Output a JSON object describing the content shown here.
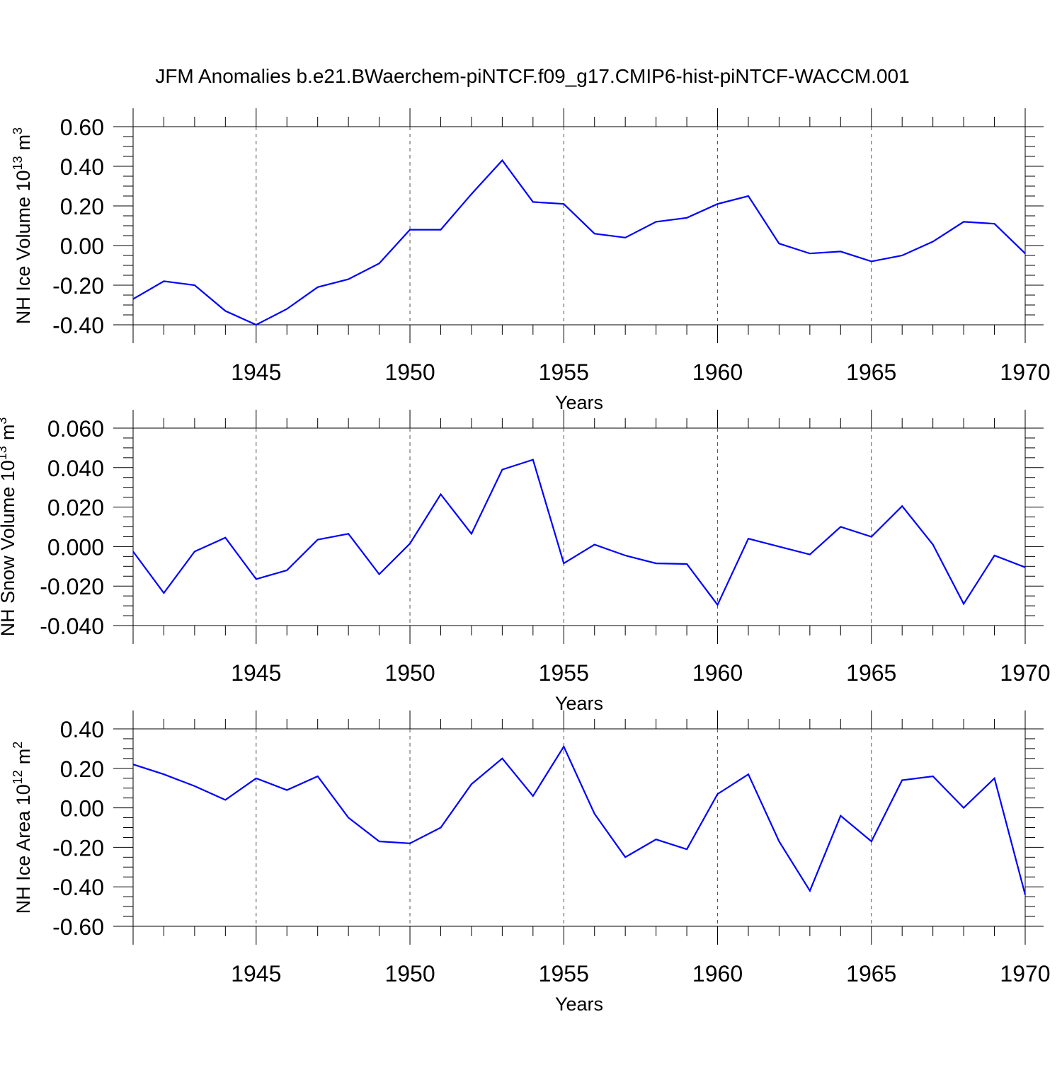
{
  "title": "JFM Anomalies b.e21.BWaerchem-piNTCF.f09_g17.CMIP6-hist-piNTCF-WACCM.001",
  "colors": {
    "series": "#0000ff",
    "axis": "#000000",
    "grid": "#555555"
  },
  "chart_data": [
    {
      "type": "line",
      "name": "ice-volume",
      "ylabel": "NH Ice Volume 10",
      "ylabel_exp": "13",
      "ylabel_unit": "m",
      "ylabel_unit_exp": "3",
      "xlabel": "Years",
      "xlim": [
        1941,
        1970
      ],
      "ylim": [
        -0.4,
        0.6
      ],
      "yticks": [
        "0.60",
        "0.40",
        "0.20",
        "0.00",
        "-0.20",
        "-0.40"
      ],
      "ytick_values": [
        0.6,
        0.4,
        0.2,
        0.0,
        -0.2,
        -0.4
      ],
      "ytick_minor_step": 0.05,
      "xticks": [
        "1945",
        "1950",
        "1955",
        "1960",
        "1965",
        "1970"
      ],
      "xtick_values": [
        1945,
        1950,
        1955,
        1960,
        1965,
        1970
      ],
      "grid_x": [
        1945,
        1950,
        1955,
        1960,
        1965
      ],
      "x": [
        1941,
        1942,
        1943,
        1944,
        1945,
        1946,
        1947,
        1948,
        1949,
        1950,
        1951,
        1952,
        1953,
        1954,
        1955,
        1956,
        1957,
        1958,
        1959,
        1960,
        1961,
        1962,
        1963,
        1964,
        1965,
        1966,
        1967,
        1968,
        1969,
        1970
      ],
      "y": [
        -0.27,
        -0.18,
        -0.2,
        -0.33,
        -0.4,
        -0.32,
        -0.21,
        -0.17,
        -0.09,
        0.08,
        0.08,
        0.26,
        0.43,
        0.22,
        0.21,
        0.06,
        0.04,
        0.12,
        0.14,
        0.21,
        0.25,
        0.01,
        -0.04,
        -0.03,
        -0.08,
        -0.05,
        0.02,
        0.12,
        0.11,
        -0.04
      ]
    },
    {
      "type": "line",
      "name": "snow-volume",
      "ylabel": "NH Snow Volume 10",
      "ylabel_exp": "13",
      "ylabel_unit": "m",
      "ylabel_unit_exp": "3",
      "xlabel": "Years",
      "xlim": [
        1941,
        1970
      ],
      "ylim": [
        -0.04,
        0.06
      ],
      "yticks": [
        "0.060",
        "0.040",
        "0.020",
        "0.000",
        "-0.020",
        "-0.040"
      ],
      "ytick_values": [
        0.06,
        0.04,
        0.02,
        0.0,
        -0.02,
        -0.04
      ],
      "ytick_minor_step": 0.005,
      "xticks": [
        "1945",
        "1950",
        "1955",
        "1960",
        "1965",
        "1970"
      ],
      "xtick_values": [
        1945,
        1950,
        1955,
        1960,
        1965,
        1970
      ],
      "grid_x": [
        1945,
        1950,
        1955,
        1960,
        1965
      ],
      "x": [
        1941,
        1942,
        1943,
        1944,
        1945,
        1946,
        1947,
        1948,
        1949,
        1950,
        1951,
        1952,
        1953,
        1954,
        1955,
        1956,
        1957,
        1958,
        1959,
        1960,
        1961,
        1962,
        1963,
        1964,
        1965,
        1966,
        1967,
        1968,
        1969,
        1970
      ],
      "y": [
        -0.0025,
        -0.0235,
        -0.0025,
        0.0045,
        -0.0165,
        -0.012,
        0.0035,
        0.0065,
        -0.014,
        0.0015,
        0.0265,
        0.0065,
        0.039,
        0.044,
        -0.0085,
        0.001,
        -0.0045,
        -0.0085,
        -0.0088,
        -0.0295,
        0.004,
        0.0,
        -0.004,
        0.01,
        0.005,
        0.0205,
        0.001,
        -0.029,
        -0.0045,
        -0.0105
      ]
    },
    {
      "type": "line",
      "name": "ice-area",
      "ylabel": "NH Ice Area 10",
      "ylabel_exp": "12",
      "ylabel_unit": "m",
      "ylabel_unit_exp": "2",
      "xlabel": "Years",
      "xlim": [
        1941,
        1970
      ],
      "ylim": [
        -0.6,
        0.4
      ],
      "yticks": [
        "0.40",
        "0.20",
        "0.00",
        "-0.20",
        "-0.40",
        "-0.60"
      ],
      "ytick_values": [
        0.4,
        0.2,
        0.0,
        -0.2,
        -0.4,
        -0.6
      ],
      "ytick_minor_step": 0.05,
      "xticks": [
        "1945",
        "1950",
        "1955",
        "1960",
        "1965",
        "1970"
      ],
      "xtick_values": [
        1945,
        1950,
        1955,
        1960,
        1965,
        1970
      ],
      "grid_x": [
        1945,
        1950,
        1955,
        1960,
        1965
      ],
      "x": [
        1941,
        1942,
        1943,
        1944,
        1945,
        1946,
        1947,
        1948,
        1949,
        1950,
        1951,
        1952,
        1953,
        1954,
        1955,
        1956,
        1957,
        1958,
        1959,
        1960,
        1961,
        1962,
        1963,
        1964,
        1965,
        1966,
        1967,
        1968,
        1969,
        1970
      ],
      "y": [
        0.22,
        0.17,
        0.11,
        0.04,
        0.15,
        0.09,
        0.16,
        -0.05,
        -0.17,
        -0.18,
        -0.1,
        0.12,
        0.25,
        0.06,
        0.31,
        -0.03,
        -0.25,
        -0.16,
        -0.21,
        0.07,
        0.17,
        -0.17,
        -0.42,
        -0.04,
        -0.17,
        0.14,
        0.16,
        0.0,
        0.15,
        -0.44
      ]
    }
  ]
}
